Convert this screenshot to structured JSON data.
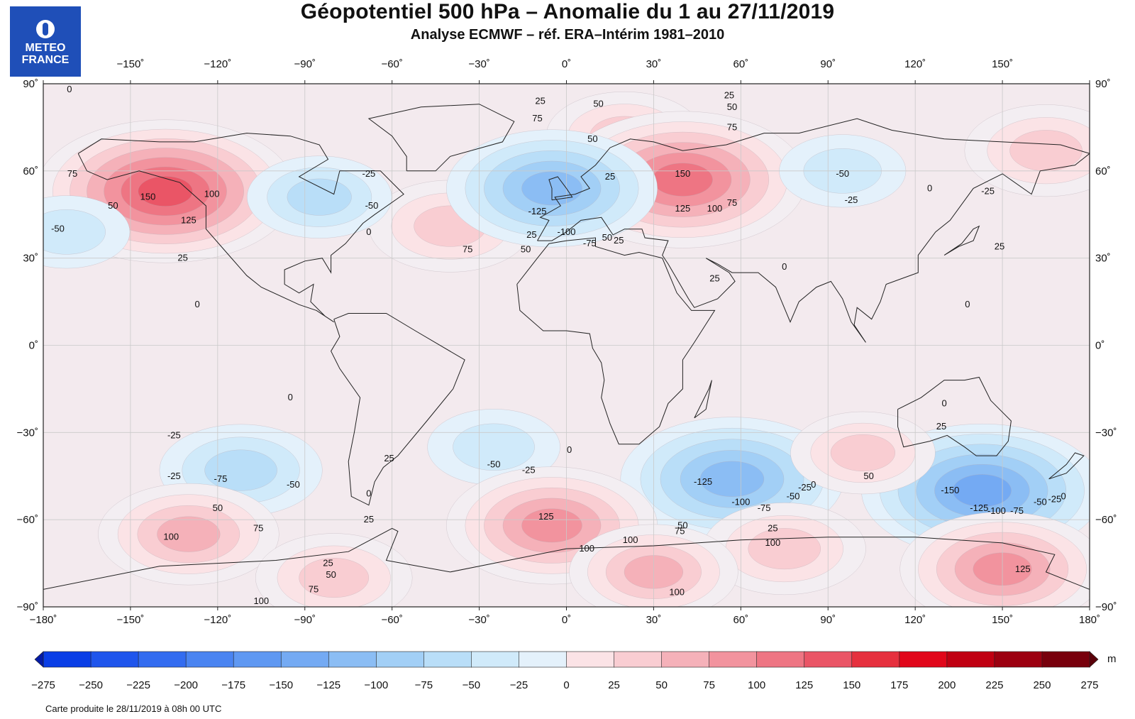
{
  "header": {
    "title": "Géopotentiel 500 hPa – Anomalie du 1 au 27/11/2019",
    "subtitle": "Analyse ECMWF – réf. ERA–Intérim 1981–2010"
  },
  "logo": {
    "line1": "METEO",
    "line2": "FRANCE",
    "color": "#1f4fb8"
  },
  "footer": "Carte produite le 28/11/2019 à 08h 00 UTC",
  "colorbar": {
    "unit": "m",
    "labels": [
      "−275",
      "−250",
      "−225",
      "−200",
      "−175",
      "−150",
      "−125",
      "−100",
      "−75",
      "−50",
      "−25",
      "0",
      "25",
      "50",
      "75",
      "100",
      "125",
      "150",
      "175",
      "200",
      "225",
      "250",
      "275"
    ],
    "colors": [
      "#0a3ee6",
      "#1f55ec",
      "#336cf0",
      "#4a84f1",
      "#5f98f2",
      "#74aaf3",
      "#8bbdf4",
      "#a2cff6",
      "#b9def8",
      "#d0eafa",
      "#e4f1fb",
      "#f3eef2",
      "#fbe3e6",
      "#f9cdd2",
      "#f5b1b9",
      "#f2939e",
      "#ee7583",
      "#ea5566",
      "#e6303e",
      "#e1061a",
      "#c00012",
      "#9c0010",
      "#78000c"
    ],
    "ends": {
      "low": "#041ba6",
      "high": "#5a0009"
    }
  },
  "map": {
    "lon_ticks": [
      "−180˚",
      "−150˚",
      "−120˚",
      "−90˚",
      "−60˚",
      "−30˚",
      "0˚",
      "30˚",
      "60˚",
      "90˚",
      "120˚",
      "150˚",
      "180˚"
    ],
    "lat_ticks": [
      "90˚",
      "60˚",
      "30˚",
      "0˚",
      "−30˚",
      "−60˚",
      "−90˚"
    ],
    "background": "#f3eaee",
    "anomalies": [
      {
        "lon": -138,
        "lat": 53,
        "value": 175
      },
      {
        "lon": 20,
        "lat": 72,
        "value": 90
      },
      {
        "lon": 40,
        "lat": 57,
        "value": 165
      },
      {
        "lon": -40,
        "lat": 41,
        "value": 95
      },
      {
        "lon": 165,
        "lat": 67,
        "value": 95
      },
      {
        "lon": -5,
        "lat": 54,
        "value": -135
      },
      {
        "lon": -85,
        "lat": 51,
        "value": -80
      },
      {
        "lon": 95,
        "lat": 60,
        "value": -65
      },
      {
        "lon": -172,
        "lat": 39,
        "value": -65
      },
      {
        "lon": 57,
        "lat": -46,
        "value": -145
      },
      {
        "lon": 143,
        "lat": -50,
        "value": -160
      },
      {
        "lon": -112,
        "lat": -43,
        "value": -95
      },
      {
        "lon": -25,
        "lat": -35,
        "value": -70
      },
      {
        "lon": -5,
        "lat": -62,
        "value": 135
      },
      {
        "lon": -130,
        "lat": -65,
        "value": 110
      },
      {
        "lon": 150,
        "lat": -77,
        "value": 130
      },
      {
        "lon": 102,
        "lat": -37,
        "value": 80
      },
      {
        "lon": 75,
        "lat": -70,
        "value": 95
      },
      {
        "lon": 30,
        "lat": -78,
        "value": 100
      },
      {
        "lon": -80,
        "lat": -80,
        "value": 90
      }
    ],
    "contour_labels": [
      {
        "lon": -171,
        "lat": 88,
        "text": "0"
      },
      {
        "lon": -9,
        "lat": 84,
        "text": "25"
      },
      {
        "lon": 11,
        "lat": 83,
        "text": "50"
      },
      {
        "lon": -10,
        "lat": 78,
        "text": "75"
      },
      {
        "lon": 9,
        "lat": 71,
        "text": "50"
      },
      {
        "lon": 56,
        "lat": 86,
        "text": "25"
      },
      {
        "lon": 57,
        "lat": 82,
        "text": "50"
      },
      {
        "lon": 57,
        "lat": 75,
        "text": "75"
      },
      {
        "lon": -170,
        "lat": 59,
        "text": "75"
      },
      {
        "lon": -144,
        "lat": 51,
        "text": "150"
      },
      {
        "lon": -122,
        "lat": 52,
        "text": "100"
      },
      {
        "lon": -156,
        "lat": 48,
        "text": "50"
      },
      {
        "lon": -130,
        "lat": 43,
        "text": "125"
      },
      {
        "lon": -132,
        "lat": 30,
        "text": "25"
      },
      {
        "lon": -175,
        "lat": 40,
        "text": "-50"
      },
      {
        "lon": -127,
        "lat": 14,
        "text": "0"
      },
      {
        "lon": -68,
        "lat": 59,
        "text": "-25"
      },
      {
        "lon": -67,
        "lat": 48,
        "text": "-50"
      },
      {
        "lon": -68,
        "lat": 39,
        "text": "0"
      },
      {
        "lon": -34,
        "lat": 33,
        "text": "75"
      },
      {
        "lon": -14,
        "lat": 33,
        "text": "50"
      },
      {
        "lon": -12,
        "lat": 38,
        "text": "25"
      },
      {
        "lon": -10,
        "lat": 46,
        "text": "-125"
      },
      {
        "lon": 0,
        "lat": 39,
        "text": "-100"
      },
      {
        "lon": 8,
        "lat": 35,
        "text": "-75"
      },
      {
        "lon": 14,
        "lat": 37,
        "text": "50"
      },
      {
        "lon": 18,
        "lat": 36,
        "text": "25"
      },
      {
        "lon": 15,
        "lat": 58,
        "text": "25"
      },
      {
        "lon": 40,
        "lat": 59,
        "text": "150"
      },
      {
        "lon": 40,
        "lat": 47,
        "text": "125"
      },
      {
        "lon": 51,
        "lat": 47,
        "text": "100"
      },
      {
        "lon": 57,
        "lat": 49,
        "text": "75"
      },
      {
        "lon": 95,
        "lat": 59,
        "text": "-50"
      },
      {
        "lon": 98,
        "lat": 50,
        "text": "-25"
      },
      {
        "lon": 125,
        "lat": 54,
        "text": "0"
      },
      {
        "lon": 145,
        "lat": 53,
        "text": "-25"
      },
      {
        "lon": 149,
        "lat": 34,
        "text": "25"
      },
      {
        "lon": 75,
        "lat": 27,
        "text": "0"
      },
      {
        "lon": 51,
        "lat": 23,
        "text": "25"
      },
      {
        "lon": 138,
        "lat": 14,
        "text": "0"
      },
      {
        "lon": -95,
        "lat": -18,
        "text": "0"
      },
      {
        "lon": -135,
        "lat": -31,
        "text": "-25"
      },
      {
        "lon": -135,
        "lat": -45,
        "text": "-25"
      },
      {
        "lon": -119,
        "lat": -46,
        "text": "-75"
      },
      {
        "lon": -94,
        "lat": -48,
        "text": "-50"
      },
      {
        "lon": -120,
        "lat": -56,
        "text": "50"
      },
      {
        "lon": -136,
        "lat": -66,
        "text": "100"
      },
      {
        "lon": -106,
        "lat": -63,
        "text": "75"
      },
      {
        "lon": -61,
        "lat": -39,
        "text": "25"
      },
      {
        "lon": -68,
        "lat": -51,
        "text": "0"
      },
      {
        "lon": -68,
        "lat": -60,
        "text": "25"
      },
      {
        "lon": -25,
        "lat": -41,
        "text": "-50"
      },
      {
        "lon": -13,
        "lat": -43,
        "text": "-25"
      },
      {
        "lon": 1,
        "lat": -36,
        "text": "0"
      },
      {
        "lon": -7,
        "lat": -59,
        "text": "125"
      },
      {
        "lon": 7,
        "lat": -70,
        "text": "100"
      },
      {
        "lon": 22,
        "lat": -67,
        "text": "100"
      },
      {
        "lon": 40,
        "lat": -62,
        "text": "50"
      },
      {
        "lon": 39,
        "lat": -64,
        "text": "75"
      },
      {
        "lon": 47,
        "lat": -47,
        "text": "-125"
      },
      {
        "lon": 60,
        "lat": -54,
        "text": "-100"
      },
      {
        "lon": 68,
        "lat": -56,
        "text": "-75"
      },
      {
        "lon": 78,
        "lat": -52,
        "text": "-50"
      },
      {
        "lon": 82,
        "lat": -49,
        "text": "-25"
      },
      {
        "lon": 85,
        "lat": -48,
        "text": "0"
      },
      {
        "lon": 71,
        "lat": -63,
        "text": "25"
      },
      {
        "lon": 71,
        "lat": -68,
        "text": "100"
      },
      {
        "lon": -82,
        "lat": -75,
        "text": "25"
      },
      {
        "lon": -81,
        "lat": -79,
        "text": "50"
      },
      {
        "lon": -87,
        "lat": -84,
        "text": "75"
      },
      {
        "lon": -105,
        "lat": -88,
        "text": "100"
      },
      {
        "lon": 38,
        "lat": -85,
        "text": "100"
      },
      {
        "lon": 104,
        "lat": -45,
        "text": "50"
      },
      {
        "lon": 129,
        "lat": -28,
        "text": "25"
      },
      {
        "lon": 130,
        "lat": -20,
        "text": "0"
      },
      {
        "lon": 132,
        "lat": -50,
        "text": "-150"
      },
      {
        "lon": 142,
        "lat": -56,
        "text": "-125"
      },
      {
        "lon": 148,
        "lat": -57,
        "text": "-100"
      },
      {
        "lon": 155,
        "lat": -57,
        "text": "-75"
      },
      {
        "lon": 163,
        "lat": -54,
        "text": "-50"
      },
      {
        "lon": 168,
        "lat": -53,
        "text": "-25"
      },
      {
        "lon": 171,
        "lat": -52,
        "text": "0"
      },
      {
        "lon": 157,
        "lat": -77,
        "text": "125"
      }
    ]
  }
}
